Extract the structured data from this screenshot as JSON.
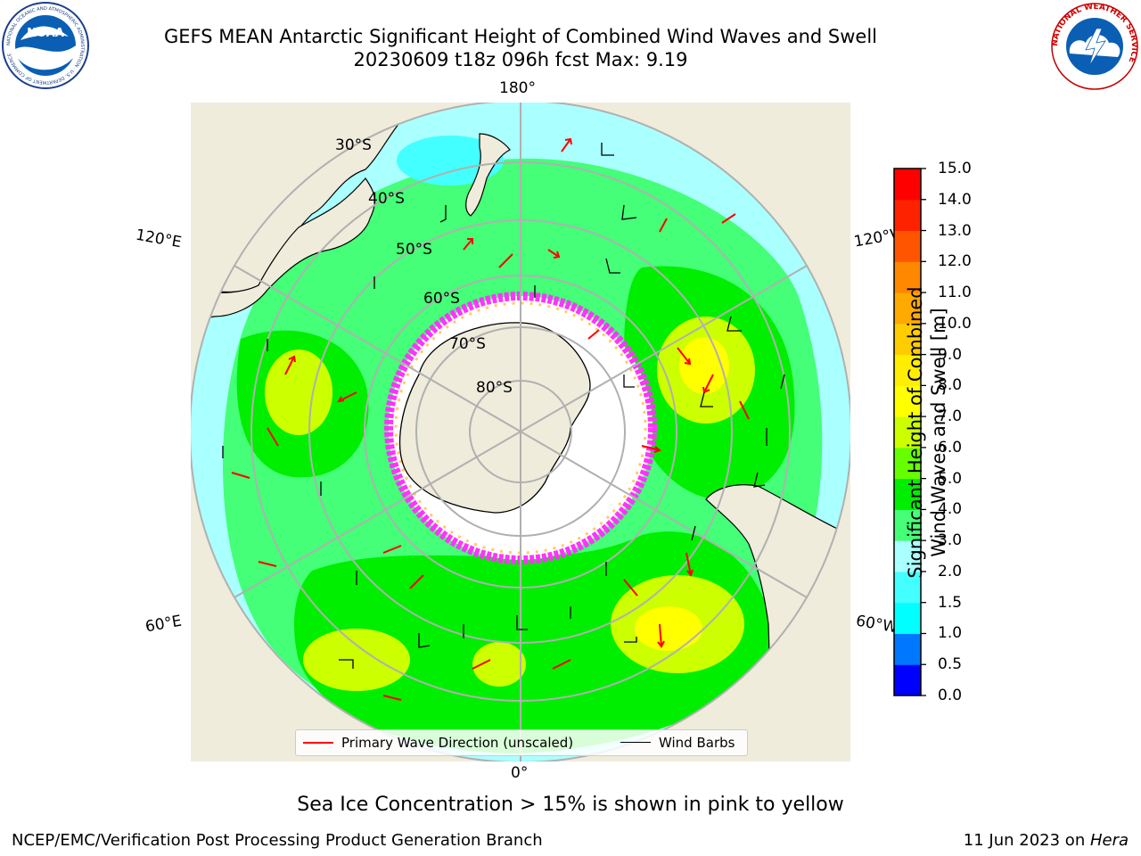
{
  "header": {
    "title_line1": "GEFS MEAN Antarctic Significant Height of Combined Wind Waves and Swell",
    "title_line2": "20230609 t18z 096h fcst   Max: 9.19"
  },
  "logos": {
    "left": "NOAA",
    "left_ring_text": "NATIONAL OCEANIC AND ATMOSPHERIC ADMINISTRATION · U.S. DEPARTMENT OF COMMERCE",
    "right_ring_text": "NATIONAL WEATHER SERVICE"
  },
  "map": {
    "projection": "south-polar-stereographic",
    "longitude_labels": {
      "top": "180°",
      "bottom": "0°",
      "left_upper": "120°E",
      "left_lower": "60°E",
      "right_upper": "120°W",
      "right_lower": "60°W"
    },
    "latitude_labels": [
      "30°S",
      "40°S",
      "50°S",
      "60°S",
      "70°S",
      "80°S"
    ],
    "colors": {
      "land": "#efecdc",
      "coastline": "#000000",
      "graticule": "#b0b0b0",
      "ice_edge": "#ff33ff",
      "wave_arrow": "#ff0000",
      "wind_barb": "#000000"
    }
  },
  "legend": {
    "items": [
      {
        "label": "Primary Wave Direction (unscaled)",
        "color": "#ff0000"
      },
      {
        "label": "Wind Barbs",
        "color": "#000000"
      }
    ]
  },
  "colorbar": {
    "label_line1": "Significant Height of Combined",
    "label_line2": "Wind Waves and Swell [m]",
    "ticks": [
      "0.0",
      "0.5",
      "1.0",
      "1.5",
      "2.0",
      "3.0",
      "4.0",
      "5.0",
      "6.0",
      "7.0",
      "8.0",
      "9.0",
      "10.0",
      "11.0",
      "12.0",
      "13.0",
      "14.0",
      "15.0"
    ],
    "colors": [
      "#0000ff",
      "#0077ff",
      "#00ffff",
      "#44ffff",
      "#aaffff",
      "#44ff77",
      "#00ee00",
      "#66ff00",
      "#ccff00",
      "#ffff00",
      "#ffee00",
      "#ffcc00",
      "#ffaa00",
      "#ff8800",
      "#ff5500",
      "#ff2200",
      "#ff0000"
    ]
  },
  "subtitle": "Sea Ice Concentration > 15% is shown in pink to yellow",
  "footer": {
    "left": "NCEP/EMC/Verification Post Processing Product Generation Branch",
    "right_prefix": "11 Jun 2023 on ",
    "right_host": "Hera"
  }
}
